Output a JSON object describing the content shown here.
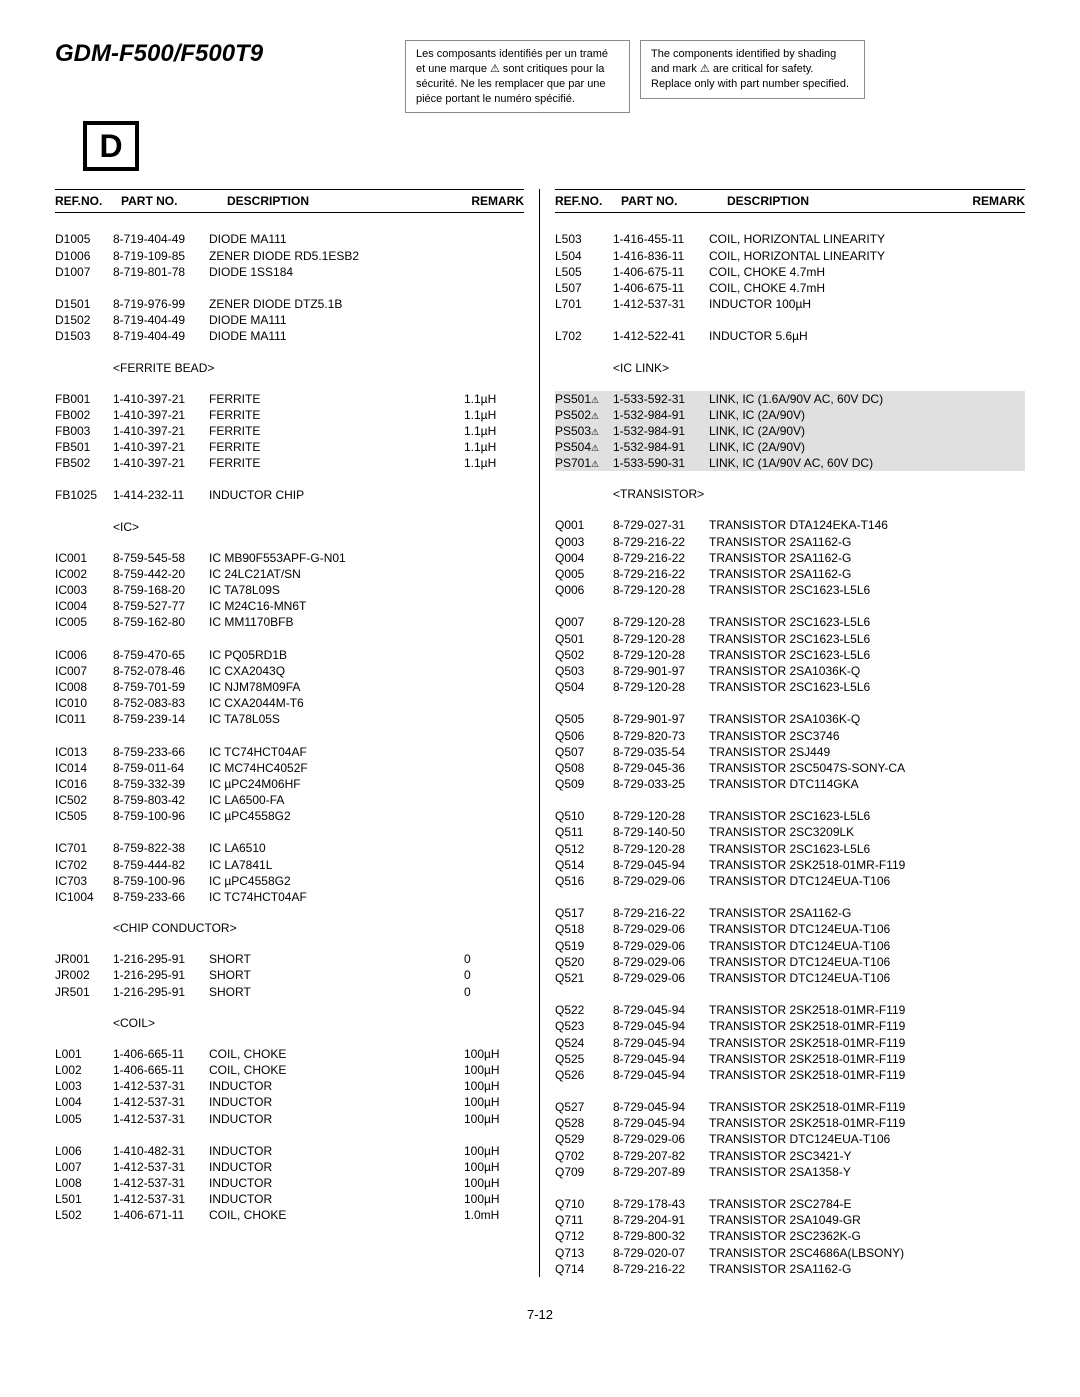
{
  "title": "GDM-F500/F500T9",
  "noteFr": "Les composants identifiés per un tramé et une marque ⚠ sont critiques pour la sécurité. Ne les remplacer que par une piéce portant le numéro spécifié.",
  "noteEn": "The components identified by shading and mark ⚠ are critical for safety. Replace only with part number specified.",
  "dBox": "D",
  "headers": {
    "ref": "REF.NO.",
    "part": "PART NO.",
    "desc": "DESCRIPTION",
    "remark": "REMARK"
  },
  "footer": "7-12",
  "left": [
    {
      "t": "r",
      "ref": "D1005",
      "part": "8-719-404-49",
      "desc": "DIODE MA111"
    },
    {
      "t": "r",
      "ref": "D1006",
      "part": "8-719-109-85",
      "desc": "ZENER DIODE RD5.1ESB2"
    },
    {
      "t": "r",
      "ref": "D1007",
      "part": "8-719-801-78",
      "desc": "DIODE 1SS184"
    },
    {
      "t": "b"
    },
    {
      "t": "r",
      "ref": "D1501",
      "part": "8-719-976-99",
      "desc": "ZENER DIODE DTZ5.1B"
    },
    {
      "t": "r",
      "ref": "D1502",
      "part": "8-719-404-49",
      "desc": "DIODE MA111"
    },
    {
      "t": "r",
      "ref": "D1503",
      "part": "8-719-404-49",
      "desc": "DIODE MA111"
    },
    {
      "t": "s",
      "label": "<FERRITE BEAD>"
    },
    {
      "t": "r",
      "ref": "FB001",
      "part": "1-410-397-21",
      "desc": "FERRITE",
      "spec": "1.1µH"
    },
    {
      "t": "r",
      "ref": "FB002",
      "part": "1-410-397-21",
      "desc": "FERRITE",
      "spec": "1.1µH"
    },
    {
      "t": "r",
      "ref": "FB003",
      "part": "1-410-397-21",
      "desc": "FERRITE",
      "spec": "1.1µH"
    },
    {
      "t": "r",
      "ref": "FB501",
      "part": "1-410-397-21",
      "desc": "FERRITE",
      "spec": "1.1µH"
    },
    {
      "t": "r",
      "ref": "FB502",
      "part": "1-410-397-21",
      "desc": "FERRITE",
      "spec": "1.1µH"
    },
    {
      "t": "b"
    },
    {
      "t": "r",
      "ref": "FB1025",
      "part": "1-414-232-11",
      "desc": "INDUCTOR CHIP"
    },
    {
      "t": "s",
      "label": "<IC>"
    },
    {
      "t": "r",
      "ref": "IC001",
      "part": "8-759-545-58",
      "desc": "IC MB90F553APF-G-N01"
    },
    {
      "t": "r",
      "ref": "IC002",
      "part": "8-759-442-20",
      "desc": "IC 24LC21AT/SN"
    },
    {
      "t": "r",
      "ref": "IC003",
      "part": "8-759-168-20",
      "desc": "IC TA78L09S"
    },
    {
      "t": "r",
      "ref": "IC004",
      "part": "8-759-527-77",
      "desc": "IC M24C16-MN6T"
    },
    {
      "t": "r",
      "ref": "IC005",
      "part": "8-759-162-80",
      "desc": "IC MM1170BFB"
    },
    {
      "t": "b"
    },
    {
      "t": "r",
      "ref": "IC006",
      "part": "8-759-470-65",
      "desc": "IC PQ05RD1B"
    },
    {
      "t": "r",
      "ref": "IC007",
      "part": "8-752-078-46",
      "desc": "IC CXA2043Q"
    },
    {
      "t": "r",
      "ref": "IC008",
      "part": "8-759-701-59",
      "desc": "IC NJM78M09FA"
    },
    {
      "t": "r",
      "ref": "IC010",
      "part": "8-752-083-83",
      "desc": "IC CXA2044M-T6"
    },
    {
      "t": "r",
      "ref": "IC011",
      "part": "8-759-239-14",
      "desc": "IC TA78L05S"
    },
    {
      "t": "b"
    },
    {
      "t": "r",
      "ref": "IC013",
      "part": "8-759-233-66",
      "desc": "IC TC74HCT04AF"
    },
    {
      "t": "r",
      "ref": "IC014",
      "part": "8-759-011-64",
      "desc": "IC MC74HC4052F"
    },
    {
      "t": "r",
      "ref": "IC016",
      "part": "8-759-332-39",
      "desc": "IC µPC24M06HF"
    },
    {
      "t": "r",
      "ref": "IC502",
      "part": "8-759-803-42",
      "desc": "IC LA6500-FA"
    },
    {
      "t": "r",
      "ref": "IC505",
      "part": "8-759-100-96",
      "desc": "IC µPC4558G2"
    },
    {
      "t": "b"
    },
    {
      "t": "r",
      "ref": "IC701",
      "part": "8-759-822-38",
      "desc": "IC LA6510"
    },
    {
      "t": "r",
      "ref": "IC702",
      "part": "8-759-444-82",
      "desc": "IC LA7841L"
    },
    {
      "t": "r",
      "ref": "IC703",
      "part": "8-759-100-96",
      "desc": "IC µPC4558G2"
    },
    {
      "t": "r",
      "ref": "IC1004",
      "part": "8-759-233-66",
      "desc": "IC TC74HCT04AF"
    },
    {
      "t": "s",
      "label": "<CHIP CONDUCTOR>"
    },
    {
      "t": "r",
      "ref": "JR001",
      "part": "1-216-295-91",
      "desc": "SHORT",
      "spec": "0"
    },
    {
      "t": "r",
      "ref": "JR002",
      "part": "1-216-295-91",
      "desc": "SHORT",
      "spec": "0"
    },
    {
      "t": "r",
      "ref": "JR501",
      "part": "1-216-295-91",
      "desc": "SHORT",
      "spec": "0"
    },
    {
      "t": "s",
      "label": "<COIL>"
    },
    {
      "t": "r",
      "ref": "L001",
      "part": "1-406-665-11",
      "desc": "COIL, CHOKE",
      "spec": "100µH"
    },
    {
      "t": "r",
      "ref": "L002",
      "part": "1-406-665-11",
      "desc": "COIL, CHOKE",
      "spec": "100µH"
    },
    {
      "t": "r",
      "ref": "L003",
      "part": "1-412-537-31",
      "desc": "INDUCTOR",
      "spec": "100µH"
    },
    {
      "t": "r",
      "ref": "L004",
      "part": "1-412-537-31",
      "desc": "INDUCTOR",
      "spec": "100µH"
    },
    {
      "t": "r",
      "ref": "L005",
      "part": "1-412-537-31",
      "desc": "INDUCTOR",
      "spec": "100µH"
    },
    {
      "t": "b"
    },
    {
      "t": "r",
      "ref": "L006",
      "part": "1-410-482-31",
      "desc": "INDUCTOR",
      "spec": "100µH"
    },
    {
      "t": "r",
      "ref": "L007",
      "part": "1-412-537-31",
      "desc": "INDUCTOR",
      "spec": "100µH"
    },
    {
      "t": "r",
      "ref": "L008",
      "part": "1-412-537-31",
      "desc": "INDUCTOR",
      "spec": "100µH"
    },
    {
      "t": "r",
      "ref": "L501",
      "part": "1-412-537-31",
      "desc": "INDUCTOR",
      "spec": "100µH"
    },
    {
      "t": "r",
      "ref": "L502",
      "part": "1-406-671-11",
      "desc": "COIL, CHOKE",
      "spec": "1.0mH"
    }
  ],
  "right": [
    {
      "t": "r",
      "ref": "L503",
      "part": "1-416-455-11",
      "desc": "COIL, HORIZONTAL LINEARITY"
    },
    {
      "t": "r",
      "ref": "L504",
      "part": "1-416-836-11",
      "desc": "COIL, HORIZONTAL LINEARITY"
    },
    {
      "t": "r",
      "ref": "L505",
      "part": "1-406-675-11",
      "desc": "COIL, CHOKE    4.7mH"
    },
    {
      "t": "r",
      "ref": "L507",
      "part": "1-406-675-11",
      "desc": "COIL, CHOKE    4.7mH"
    },
    {
      "t": "r",
      "ref": "L701",
      "part": "1-412-537-31",
      "desc": "INDUCTOR          100µH"
    },
    {
      "t": "b"
    },
    {
      "t": "r",
      "ref": "L702",
      "part": "1-412-522-41",
      "desc": "INDUCTOR          5.6µH"
    },
    {
      "t": "s",
      "label": "<IC LINK>"
    },
    {
      "t": "r",
      "ref": "PS501",
      "warn": true,
      "part": "1-533-592-31",
      "desc": "LINK, IC (1.6A/90V AC, 60V DC)",
      "shade": true
    },
    {
      "t": "r",
      "ref": "PS502",
      "warn": true,
      "part": "1-532-984-91",
      "desc": "LINK, IC (2A/90V)",
      "shade": true
    },
    {
      "t": "r",
      "ref": "PS503",
      "warn": true,
      "part": "1-532-984-91",
      "desc": "LINK, IC (2A/90V)",
      "shade": true
    },
    {
      "t": "r",
      "ref": "PS504",
      "warn": true,
      "part": "1-532-984-91",
      "desc": "LINK, IC (2A/90V)",
      "shade": true
    },
    {
      "t": "r",
      "ref": "PS701",
      "warn": true,
      "part": "1-533-590-31",
      "desc": "LINK, IC (1A/90V AC, 60V DC)",
      "shade": true
    },
    {
      "t": "s",
      "label": "<TRANSISTOR>"
    },
    {
      "t": "r",
      "ref": "Q001",
      "part": "8-729-027-31",
      "desc": "TRANSISTOR DTA124EKA-T146"
    },
    {
      "t": "r",
      "ref": "Q003",
      "part": "8-729-216-22",
      "desc": "TRANSISTOR 2SA1162-G"
    },
    {
      "t": "r",
      "ref": "Q004",
      "part": "8-729-216-22",
      "desc": "TRANSISTOR 2SA1162-G"
    },
    {
      "t": "r",
      "ref": "Q005",
      "part": "8-729-216-22",
      "desc": "TRANSISTOR 2SA1162-G"
    },
    {
      "t": "r",
      "ref": "Q006",
      "part": "8-729-120-28",
      "desc": "TRANSISTOR 2SC1623-L5L6"
    },
    {
      "t": "b"
    },
    {
      "t": "r",
      "ref": "Q007",
      "part": "8-729-120-28",
      "desc": "TRANSISTOR 2SC1623-L5L6"
    },
    {
      "t": "r",
      "ref": "Q501",
      "part": "8-729-120-28",
      "desc": "TRANSISTOR 2SC1623-L5L6"
    },
    {
      "t": "r",
      "ref": "Q502",
      "part": "8-729-120-28",
      "desc": "TRANSISTOR 2SC1623-L5L6"
    },
    {
      "t": "r",
      "ref": "Q503",
      "part": "8-729-901-97",
      "desc": "TRANSISTOR 2SA1036K-Q"
    },
    {
      "t": "r",
      "ref": "Q504",
      "part": "8-729-120-28",
      "desc": "TRANSISTOR 2SC1623-L5L6"
    },
    {
      "t": "b"
    },
    {
      "t": "r",
      "ref": "Q505",
      "part": "8-729-901-97",
      "desc": "TRANSISTOR 2SA1036K-Q"
    },
    {
      "t": "r",
      "ref": "Q506",
      "part": "8-729-820-73",
      "desc": "TRANSISTOR 2SC3746"
    },
    {
      "t": "r",
      "ref": "Q507",
      "part": "8-729-035-54",
      "desc": "TRANSISTOR 2SJ449"
    },
    {
      "t": "r",
      "ref": "Q508",
      "part": "8-729-045-36",
      "desc": "TRANSISTOR 2SC5047S-SONY-CA"
    },
    {
      "t": "r",
      "ref": "Q509",
      "part": "8-729-033-25",
      "desc": "TRANSISTOR DTC114GKA"
    },
    {
      "t": "b"
    },
    {
      "t": "r",
      "ref": "Q510",
      "part": "8-729-120-28",
      "desc": "TRANSISTOR 2SC1623-L5L6"
    },
    {
      "t": "r",
      "ref": "Q511",
      "part": "8-729-140-50",
      "desc": "TRANSISTOR 2SC3209LK"
    },
    {
      "t": "r",
      "ref": "Q512",
      "part": "8-729-120-28",
      "desc": "TRANSISTOR 2SC1623-L5L6"
    },
    {
      "t": "r",
      "ref": "Q514",
      "part": "8-729-045-94",
      "desc": "TRANSISTOR 2SK2518-01MR-F119"
    },
    {
      "t": "r",
      "ref": "Q516",
      "part": "8-729-029-06",
      "desc": "TRANSISTOR DTC124EUA-T106"
    },
    {
      "t": "b"
    },
    {
      "t": "r",
      "ref": "Q517",
      "part": "8-729-216-22",
      "desc": "TRANSISTOR 2SA1162-G"
    },
    {
      "t": "r",
      "ref": "Q518",
      "part": "8-729-029-06",
      "desc": "TRANSISTOR DTC124EUA-T106"
    },
    {
      "t": "r",
      "ref": "Q519",
      "part": "8-729-029-06",
      "desc": "TRANSISTOR DTC124EUA-T106"
    },
    {
      "t": "r",
      "ref": "Q520",
      "part": "8-729-029-06",
      "desc": "TRANSISTOR DTC124EUA-T106"
    },
    {
      "t": "r",
      "ref": "Q521",
      "part": "8-729-029-06",
      "desc": "TRANSISTOR DTC124EUA-T106"
    },
    {
      "t": "b"
    },
    {
      "t": "r",
      "ref": "Q522",
      "part": "8-729-045-94",
      "desc": "TRANSISTOR 2SK2518-01MR-F119"
    },
    {
      "t": "r",
      "ref": "Q523",
      "part": "8-729-045-94",
      "desc": "TRANSISTOR 2SK2518-01MR-F119"
    },
    {
      "t": "r",
      "ref": "Q524",
      "part": "8-729-045-94",
      "desc": "TRANSISTOR 2SK2518-01MR-F119"
    },
    {
      "t": "r",
      "ref": "Q525",
      "part": "8-729-045-94",
      "desc": "TRANSISTOR 2SK2518-01MR-F119"
    },
    {
      "t": "r",
      "ref": "Q526",
      "part": "8-729-045-94",
      "desc": "TRANSISTOR 2SK2518-01MR-F119"
    },
    {
      "t": "b"
    },
    {
      "t": "r",
      "ref": "Q527",
      "part": "8-729-045-94",
      "desc": "TRANSISTOR 2SK2518-01MR-F119"
    },
    {
      "t": "r",
      "ref": "Q528",
      "part": "8-729-045-94",
      "desc": "TRANSISTOR 2SK2518-01MR-F119"
    },
    {
      "t": "r",
      "ref": "Q529",
      "part": "8-729-029-06",
      "desc": "TRANSISTOR DTC124EUA-T106"
    },
    {
      "t": "r",
      "ref": "Q702",
      "part": "8-729-207-82",
      "desc": "TRANSISTOR 2SC3421-Y"
    },
    {
      "t": "r",
      "ref": "Q709",
      "part": "8-729-207-89",
      "desc": "TRANSISTOR 2SA1358-Y"
    },
    {
      "t": "b"
    },
    {
      "t": "r",
      "ref": "Q710",
      "part": "8-729-178-43",
      "desc": "TRANSISTOR 2SC2784-E"
    },
    {
      "t": "r",
      "ref": "Q711",
      "part": "8-729-204-91",
      "desc": "TRANSISTOR 2SA1049-GR"
    },
    {
      "t": "r",
      "ref": "Q712",
      "part": "8-729-800-32",
      "desc": "TRANSISTOR 2SC2362K-G"
    },
    {
      "t": "r",
      "ref": "Q713",
      "part": "8-729-020-07",
      "desc": "TRANSISTOR 2SC4686A(LBSONY)"
    },
    {
      "t": "r",
      "ref": "Q714",
      "part": "8-729-216-22",
      "desc": "TRANSISTOR 2SA1162-G"
    }
  ]
}
